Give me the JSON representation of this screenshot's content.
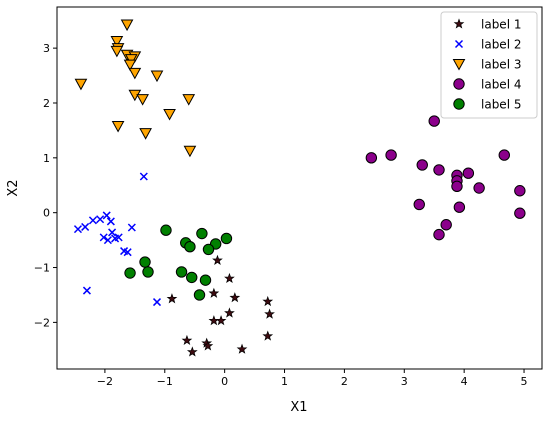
{
  "chart_data": {
    "type": "scatter",
    "title": "",
    "xlabel": "X1",
    "ylabel": "X2",
    "xlim": [
      -2.8,
      5.3
    ],
    "ylim": [
      -2.85,
      3.75
    ],
    "x_ticks": [
      -2,
      -1,
      0,
      1,
      2,
      3,
      4,
      5
    ],
    "y_ticks": [
      -2,
      -1,
      0,
      1,
      2,
      3
    ],
    "x_tick_labels": [
      "−2",
      "−1",
      "0",
      "1",
      "2",
      "3",
      "4",
      "5"
    ],
    "y_tick_labels": [
      "−2",
      "−1",
      "0",
      "1",
      "2",
      "3"
    ],
    "grid": false,
    "legend_position": "top-right",
    "series": [
      {
        "name": "label 1",
        "marker": "star",
        "color": "#3d0b10",
        "edge": "#000000",
        "points": [
          [
            -0.12,
            -0.87
          ],
          [
            0.08,
            -1.2
          ],
          [
            -0.18,
            -1.47
          ],
          [
            0.17,
            -1.55
          ],
          [
            -0.88,
            -1.57
          ],
          [
            0.72,
            -1.62
          ],
          [
            -0.18,
            -1.97
          ],
          [
            -0.06,
            -1.97
          ],
          [
            0.08,
            -1.83
          ],
          [
            0.75,
            -1.85
          ],
          [
            0.72,
            -2.25
          ],
          [
            -0.63,
            -2.33
          ],
          [
            -0.3,
            -2.38
          ],
          [
            -0.28,
            -2.43
          ],
          [
            -0.54,
            -2.54
          ],
          [
            0.29,
            -2.49
          ]
        ]
      },
      {
        "name": "label 2",
        "marker": "x",
        "color": "#0000ff",
        "points": [
          [
            -1.35,
            0.66
          ],
          [
            -1.97,
            -0.05
          ],
          [
            -2.08,
            -0.12
          ],
          [
            -1.9,
            -0.16
          ],
          [
            -2.2,
            -0.14
          ],
          [
            -2.33,
            -0.26
          ],
          [
            -2.45,
            -0.3
          ],
          [
            -1.55,
            -0.27
          ],
          [
            -1.88,
            -0.36
          ],
          [
            -2.02,
            -0.45
          ],
          [
            -1.83,
            -0.47
          ],
          [
            -1.95,
            -0.5
          ],
          [
            -1.77,
            -0.45
          ],
          [
            -1.68,
            -0.7
          ],
          [
            -1.62,
            -0.72
          ],
          [
            -2.3,
            -1.42
          ],
          [
            -1.13,
            -1.63
          ]
        ]
      },
      {
        "name": "label 3",
        "marker": "triangle_down",
        "color": "#ffa500",
        "edge": "#000000",
        "points": [
          [
            -1.63,
            3.43
          ],
          [
            -1.8,
            3.13
          ],
          [
            -1.78,
            3.0
          ],
          [
            -1.8,
            2.95
          ],
          [
            -1.63,
            2.88
          ],
          [
            -1.5,
            2.85
          ],
          [
            -1.56,
            2.8
          ],
          [
            -1.58,
            2.7
          ],
          [
            -1.5,
            2.55
          ],
          [
            -2.4,
            2.35
          ],
          [
            -1.13,
            2.5
          ],
          [
            -1.5,
            2.15
          ],
          [
            -1.37,
            2.07
          ],
          [
            -0.6,
            2.07
          ],
          [
            -0.92,
            1.8
          ],
          [
            -1.78,
            1.58
          ],
          [
            -1.32,
            1.45
          ],
          [
            -0.58,
            1.13
          ]
        ]
      },
      {
        "name": "label 4",
        "marker": "circle",
        "color": "#8b008b",
        "edge": "#000000",
        "points": [
          [
            3.5,
            1.67
          ],
          [
            2.45,
            1.0
          ],
          [
            2.78,
            1.05
          ],
          [
            3.3,
            0.87
          ],
          [
            3.58,
            0.78
          ],
          [
            3.88,
            0.68
          ],
          [
            4.07,
            0.72
          ],
          [
            3.88,
            0.58
          ],
          [
            3.88,
            0.48
          ],
          [
            4.25,
            0.45
          ],
          [
            4.67,
            1.05
          ],
          [
            4.93,
            0.4
          ],
          [
            3.25,
            0.15
          ],
          [
            3.92,
            0.1
          ],
          [
            4.93,
            -0.01
          ],
          [
            3.7,
            -0.22
          ],
          [
            3.58,
            -0.4
          ]
        ]
      },
      {
        "name": "label 5",
        "marker": "circle",
        "color": "#008000",
        "edge": "#000000",
        "points": [
          [
            -0.98,
            -0.32
          ],
          [
            -0.38,
            -0.38
          ],
          [
            0.03,
            -0.47
          ],
          [
            -0.15,
            -0.57
          ],
          [
            -0.65,
            -0.55
          ],
          [
            -0.58,
            -0.62
          ],
          [
            -0.27,
            -0.67
          ],
          [
            -1.33,
            -0.9
          ],
          [
            -1.58,
            -1.1
          ],
          [
            -1.28,
            -1.08
          ],
          [
            -0.72,
            -1.08
          ],
          [
            -0.55,
            -1.18
          ],
          [
            -0.32,
            -1.23
          ],
          [
            -0.42,
            -1.5
          ]
        ]
      }
    ]
  }
}
